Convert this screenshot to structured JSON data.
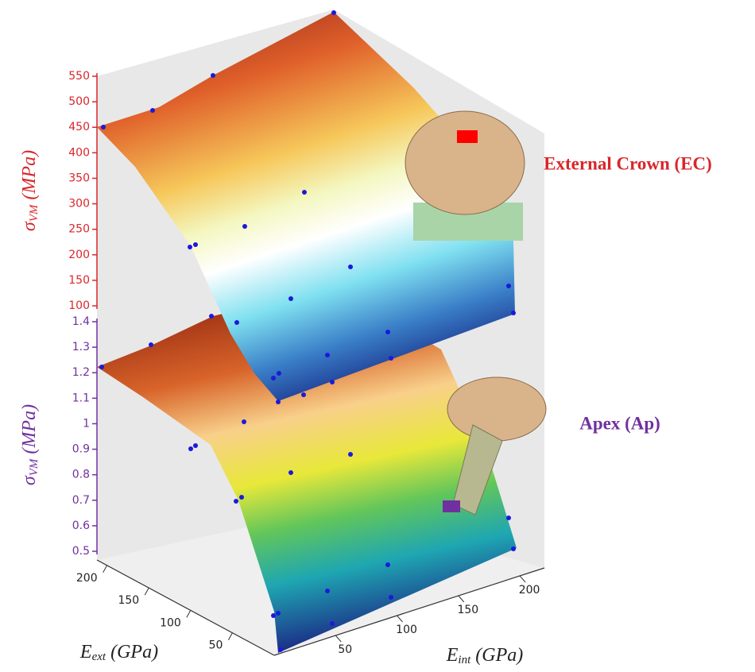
{
  "chart_data": [
    {
      "type": "surface3d",
      "ylabel": {
        "symbol": "σ",
        "subscript": "VM",
        "unit": "(MPa)"
      },
      "ylim": [
        100,
        550
      ],
      "yticks": [
        100,
        150,
        200,
        250,
        300,
        350,
        400,
        450,
        500,
        550
      ],
      "color": "#d9262b",
      "annotation": "External Crown (EC)"
    },
    {
      "type": "surface3d",
      "ylabel": {
        "symbol": "σ",
        "subscript": "VM",
        "unit": "(MPa)"
      },
      "ylim": [
        0.5,
        1.4
      ],
      "yticks": [
        0.5,
        0.6,
        0.7,
        0.8,
        0.9,
        1,
        1.1,
        1.2,
        1.3,
        1.4
      ],
      "color": "#7030a0",
      "annotation": "Apex (Ap)",
      "xlabel": {
        "symbol": "E",
        "subscript": "ext",
        "unit": "(GPa)"
      },
      "xlim": [
        0,
        212
      ],
      "xticks": [
        50,
        100,
        150,
        200
      ],
      "zlabel": {
        "symbol": "E",
        "subscript": "int",
        "unit": "(GPa)"
      },
      "zlim": [
        0,
        220
      ],
      "zticks": [
        50,
        100,
        150,
        200
      ]
    }
  ]
}
